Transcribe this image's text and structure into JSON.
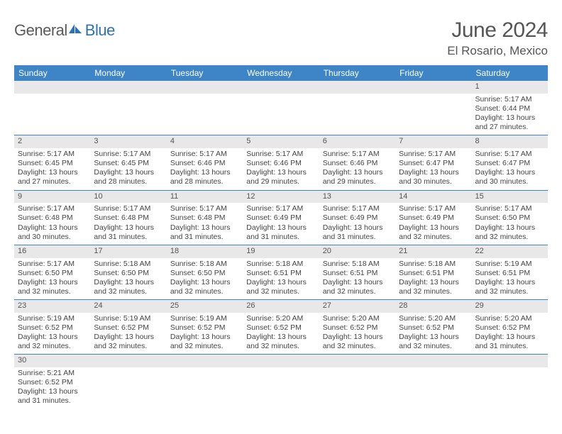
{
  "logo": {
    "text1": "General",
    "text2": "Blue"
  },
  "title": "June 2024",
  "location": "El Rosario, Mexico",
  "colors": {
    "header_bg": "#3d85c6",
    "header_text": "#ffffff",
    "daynum_bg": "#e8e8e8",
    "border": "#3d85c6",
    "logo_gray": "#5a5a5a",
    "logo_blue": "#2d72b9"
  },
  "weekdays": [
    "Sunday",
    "Monday",
    "Tuesday",
    "Wednesday",
    "Thursday",
    "Friday",
    "Saturday"
  ],
  "first_weekday_index": 6,
  "days": [
    {
      "n": 1,
      "sunrise": "5:17 AM",
      "sunset": "6:44 PM",
      "daylight": "13 hours and 27 minutes."
    },
    {
      "n": 2,
      "sunrise": "5:17 AM",
      "sunset": "6:45 PM",
      "daylight": "13 hours and 27 minutes."
    },
    {
      "n": 3,
      "sunrise": "5:17 AM",
      "sunset": "6:45 PM",
      "daylight": "13 hours and 28 minutes."
    },
    {
      "n": 4,
      "sunrise": "5:17 AM",
      "sunset": "6:46 PM",
      "daylight": "13 hours and 28 minutes."
    },
    {
      "n": 5,
      "sunrise": "5:17 AM",
      "sunset": "6:46 PM",
      "daylight": "13 hours and 29 minutes."
    },
    {
      "n": 6,
      "sunrise": "5:17 AM",
      "sunset": "6:46 PM",
      "daylight": "13 hours and 29 minutes."
    },
    {
      "n": 7,
      "sunrise": "5:17 AM",
      "sunset": "6:47 PM",
      "daylight": "13 hours and 30 minutes."
    },
    {
      "n": 8,
      "sunrise": "5:17 AM",
      "sunset": "6:47 PM",
      "daylight": "13 hours and 30 minutes."
    },
    {
      "n": 9,
      "sunrise": "5:17 AM",
      "sunset": "6:48 PM",
      "daylight": "13 hours and 30 minutes."
    },
    {
      "n": 10,
      "sunrise": "5:17 AM",
      "sunset": "6:48 PM",
      "daylight": "13 hours and 31 minutes."
    },
    {
      "n": 11,
      "sunrise": "5:17 AM",
      "sunset": "6:48 PM",
      "daylight": "13 hours and 31 minutes."
    },
    {
      "n": 12,
      "sunrise": "5:17 AM",
      "sunset": "6:49 PM",
      "daylight": "13 hours and 31 minutes."
    },
    {
      "n": 13,
      "sunrise": "5:17 AM",
      "sunset": "6:49 PM",
      "daylight": "13 hours and 31 minutes."
    },
    {
      "n": 14,
      "sunrise": "5:17 AM",
      "sunset": "6:49 PM",
      "daylight": "13 hours and 32 minutes."
    },
    {
      "n": 15,
      "sunrise": "5:17 AM",
      "sunset": "6:50 PM",
      "daylight": "13 hours and 32 minutes."
    },
    {
      "n": 16,
      "sunrise": "5:17 AM",
      "sunset": "6:50 PM",
      "daylight": "13 hours and 32 minutes."
    },
    {
      "n": 17,
      "sunrise": "5:18 AM",
      "sunset": "6:50 PM",
      "daylight": "13 hours and 32 minutes."
    },
    {
      "n": 18,
      "sunrise": "5:18 AM",
      "sunset": "6:50 PM",
      "daylight": "13 hours and 32 minutes."
    },
    {
      "n": 19,
      "sunrise": "5:18 AM",
      "sunset": "6:51 PM",
      "daylight": "13 hours and 32 minutes."
    },
    {
      "n": 20,
      "sunrise": "5:18 AM",
      "sunset": "6:51 PM",
      "daylight": "13 hours and 32 minutes."
    },
    {
      "n": 21,
      "sunrise": "5:18 AM",
      "sunset": "6:51 PM",
      "daylight": "13 hours and 32 minutes."
    },
    {
      "n": 22,
      "sunrise": "5:19 AM",
      "sunset": "6:51 PM",
      "daylight": "13 hours and 32 minutes."
    },
    {
      "n": 23,
      "sunrise": "5:19 AM",
      "sunset": "6:52 PM",
      "daylight": "13 hours and 32 minutes."
    },
    {
      "n": 24,
      "sunrise": "5:19 AM",
      "sunset": "6:52 PM",
      "daylight": "13 hours and 32 minutes."
    },
    {
      "n": 25,
      "sunrise": "5:19 AM",
      "sunset": "6:52 PM",
      "daylight": "13 hours and 32 minutes."
    },
    {
      "n": 26,
      "sunrise": "5:20 AM",
      "sunset": "6:52 PM",
      "daylight": "13 hours and 32 minutes."
    },
    {
      "n": 27,
      "sunrise": "5:20 AM",
      "sunset": "6:52 PM",
      "daylight": "13 hours and 32 minutes."
    },
    {
      "n": 28,
      "sunrise": "5:20 AM",
      "sunset": "6:52 PM",
      "daylight": "13 hours and 32 minutes."
    },
    {
      "n": 29,
      "sunrise": "5:20 AM",
      "sunset": "6:52 PM",
      "daylight": "13 hours and 31 minutes."
    },
    {
      "n": 30,
      "sunrise": "5:21 AM",
      "sunset": "6:52 PM",
      "daylight": "13 hours and 31 minutes."
    }
  ],
  "labels": {
    "sunrise": "Sunrise: ",
    "sunset": "Sunset: ",
    "daylight": "Daylight: "
  }
}
